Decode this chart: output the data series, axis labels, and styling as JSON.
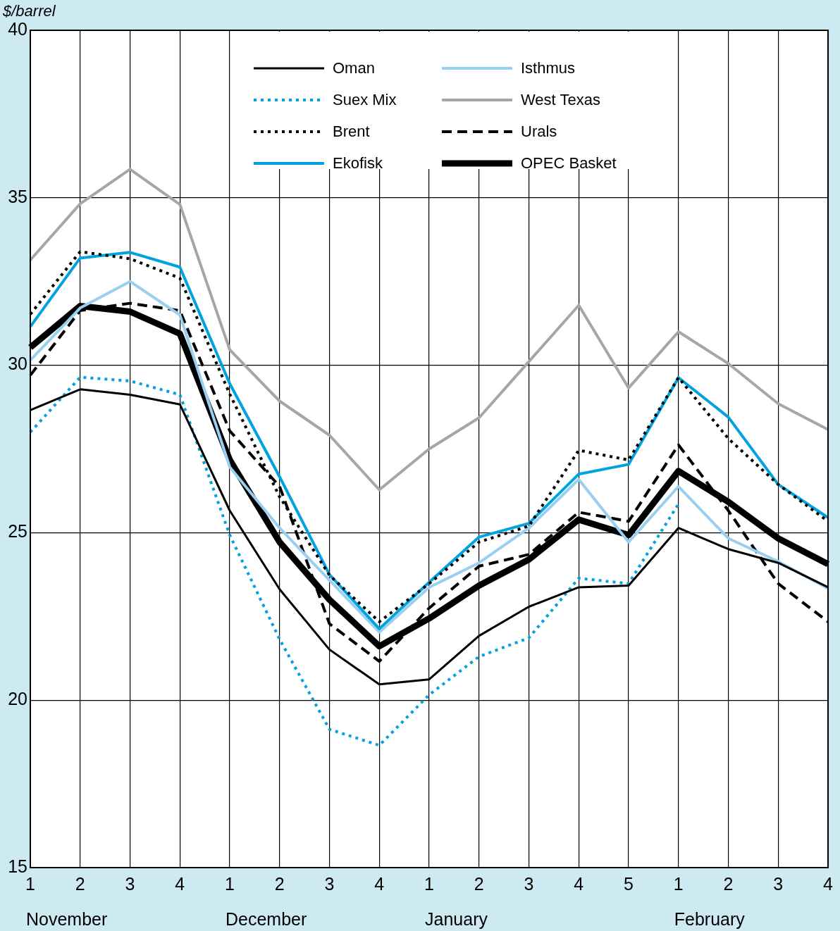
{
  "chart_data": {
    "type": "line",
    "ylabel": "$/barrel",
    "categories": [
      "1",
      "2",
      "3",
      "4",
      "1",
      "2",
      "3",
      "4",
      "1",
      "2",
      "3",
      "4",
      "5",
      "1",
      "2",
      "3",
      "4"
    ],
    "annotations": [
      "November",
      "December",
      "January",
      "February"
    ],
    "ylim": [
      15,
      40
    ],
    "yticks": [
      15,
      20,
      25,
      30,
      35,
      40
    ],
    "grid": true,
    "legend": "top",
    "marker": "none",
    "series": [
      {
        "name": "Oman",
        "color": "#000000",
        "line_style": "solid",
        "values": [
          28.66,
          29.28,
          29.12,
          28.83,
          25.66,
          23.31,
          21.51,
          20.47,
          20.62,
          21.92,
          22.79,
          23.37,
          23.42,
          25.14,
          24.51,
          24.1,
          23.37
        ]
      },
      {
        "name": "Suex Mix",
        "color": "#00a3e0",
        "line_style": "dotted",
        "values": [
          28.0,
          29.64,
          29.53,
          29.12,
          24.93,
          21.82,
          19.13,
          18.65,
          20.16,
          21.3,
          21.86,
          23.64,
          23.48,
          25.86,
          null,
          null,
          null
        ]
      },
      {
        "name": "Brent",
        "color": "#000000",
        "line_style": "dotted",
        "values": [
          31.52,
          33.39,
          33.18,
          32.6,
          29.14,
          26.07,
          23.73,
          22.34,
          23.48,
          24.72,
          25.2,
          27.46,
          27.17,
          29.63,
          27.81,
          26.44,
          25.34
        ]
      },
      {
        "name": "Ekofisk",
        "color": "#00a3e0",
        "line_style": "solid",
        "values": [
          31.15,
          33.2,
          33.37,
          32.93,
          29.45,
          26.67,
          23.75,
          22.13,
          23.52,
          24.87,
          25.28,
          26.75,
          27.04,
          29.63,
          28.45,
          26.44,
          25.45
        ]
      },
      {
        "name": "Isthmus",
        "color": "#99cff0",
        "line_style": "solid",
        "values": [
          30.15,
          31.71,
          32.5,
          31.5,
          26.96,
          25.14,
          23.58,
          22.03,
          23.37,
          24.1,
          25.14,
          26.59,
          24.72,
          26.38,
          24.83,
          24.14,
          23.33
        ]
      },
      {
        "name": "West Texas",
        "color": "#a6a6a6",
        "line_style": "solid",
        "values": [
          33.14,
          34.82,
          35.85,
          34.8,
          30.46,
          28.93,
          27.91,
          26.28,
          27.5,
          28.43,
          30.11,
          31.79,
          29.32,
          31.0,
          30.05,
          28.85,
          28.08
        ]
      },
      {
        "name": "Urals",
        "color": "#000000",
        "line_style": "dashed",
        "values": [
          29.7,
          31.63,
          31.85,
          31.63,
          28.04,
          26.38,
          22.28,
          21.16,
          22.75,
          24.0,
          24.35,
          25.61,
          25.34,
          27.62,
          25.66,
          23.48,
          22.34
        ]
      },
      {
        "name": "OPEC Basket",
        "color": "#000000",
        "line_style": "solid",
        "values": [
          30.53,
          31.77,
          31.6,
          30.94,
          27.17,
          24.72,
          23.0,
          21.61,
          22.44,
          23.42,
          24.2,
          25.39,
          24.93,
          26.84,
          25.92,
          24.83,
          24.06
        ]
      }
    ]
  }
}
